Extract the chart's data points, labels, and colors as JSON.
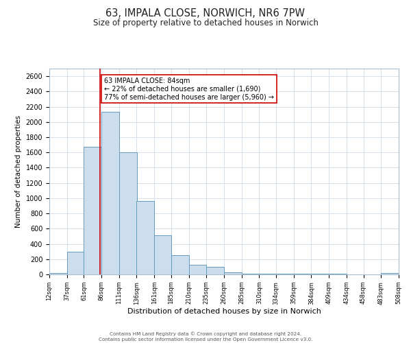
{
  "title": "63, IMPALA CLOSE, NORWICH, NR6 7PW",
  "subtitle": "Size of property relative to detached houses in Norwich",
  "xlabel": "Distribution of detached houses by size in Norwich",
  "ylabel": "Number of detached properties",
  "bar_color": "#ccdded",
  "bar_edge_color": "#6699bb",
  "background_color": "#ffffff",
  "grid_color": "#d0dce8",
  "vline_x": 84,
  "vline_color": "#cc0000",
  "annotation_title": "63 IMPALA CLOSE: 84sqm",
  "annotation_line1": "← 22% of detached houses are smaller (1,690)",
  "annotation_line2": "77% of semi-detached houses are larger (5,960) →",
  "annotation_box_color": "#ffffff",
  "annotation_box_edge": "#cc0000",
  "bins": [
    12,
    37,
    61,
    86,
    111,
    136,
    161,
    185,
    210,
    235,
    260,
    285,
    310,
    334,
    359,
    384,
    409,
    434,
    458,
    483,
    508
  ],
  "bin_labels": [
    "12sqm",
    "37sqm",
    "61sqm",
    "86sqm",
    "111sqm",
    "136sqm",
    "161sqm",
    "185sqm",
    "210sqm",
    "235sqm",
    "260sqm",
    "285sqm",
    "310sqm",
    "334sqm",
    "359sqm",
    "384sqm",
    "409sqm",
    "434sqm",
    "458sqm",
    "483sqm",
    "508sqm"
  ],
  "counts": [
    20,
    300,
    1670,
    2130,
    1600,
    960,
    510,
    255,
    125,
    95,
    30,
    10,
    10,
    5,
    5,
    5,
    5,
    0,
    0,
    20
  ],
  "ylim": [
    0,
    2700
  ],
  "yticks": [
    0,
    200,
    400,
    600,
    800,
    1000,
    1200,
    1400,
    1600,
    1800,
    2000,
    2200,
    2400,
    2600
  ],
  "footer_line1": "Contains HM Land Registry data © Crown copyright and database right 2024.",
  "footer_line2": "Contains public sector information licensed under the Open Government Licence v3.0."
}
